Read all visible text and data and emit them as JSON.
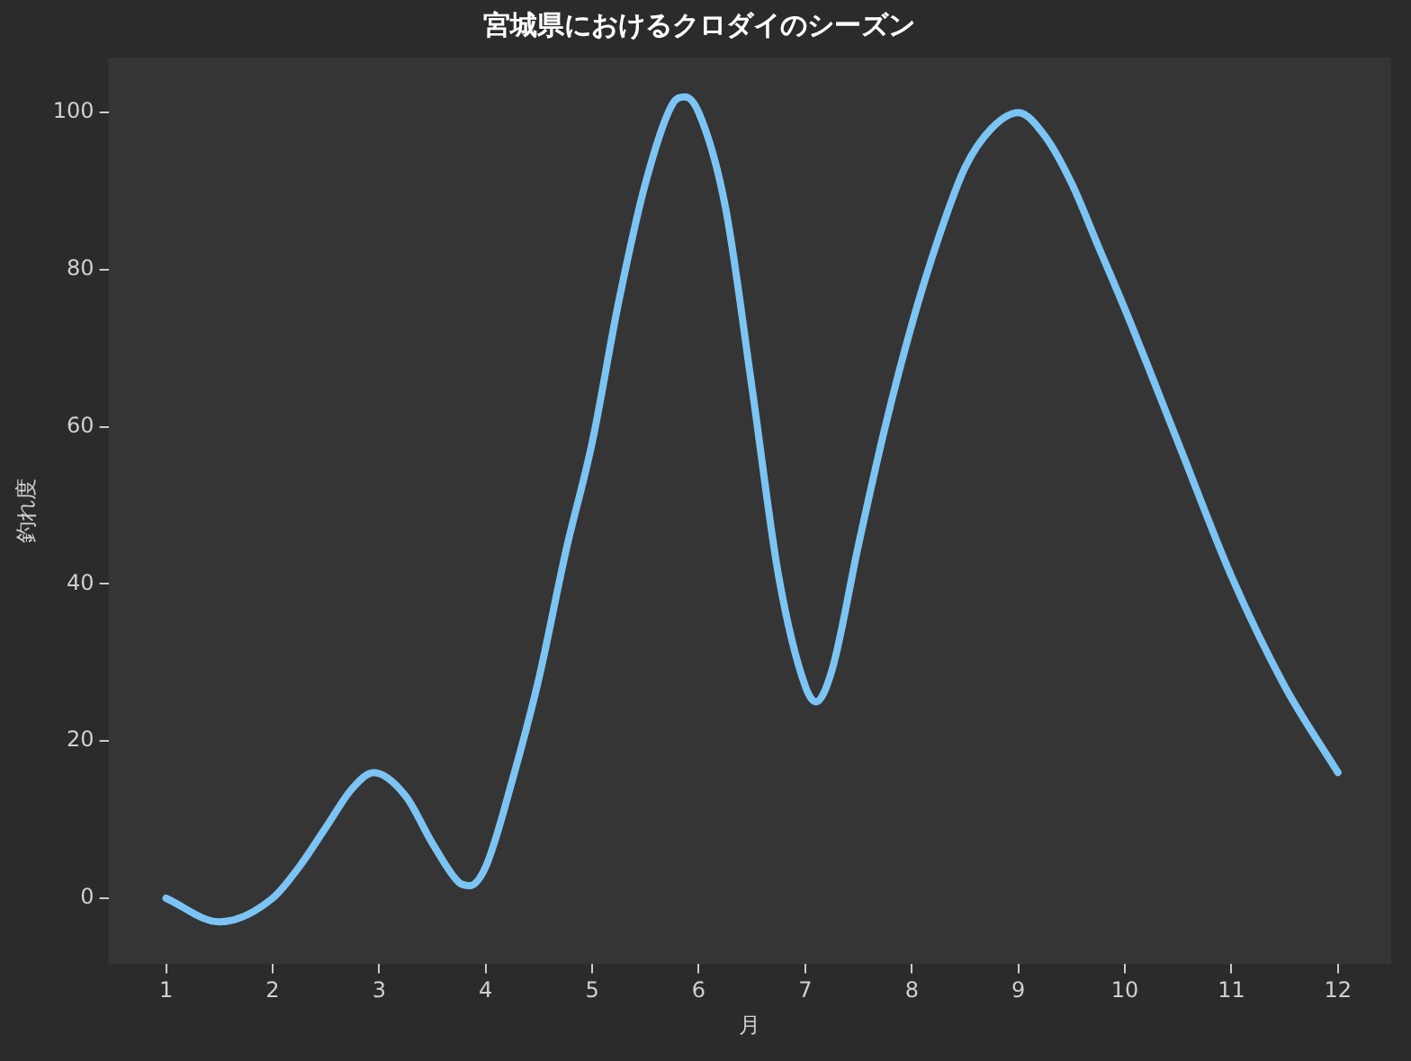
{
  "chart_data": {
    "type": "line",
    "title": "宮城県におけるクロダイのシーズン",
    "xlabel": "月",
    "ylabel": "釣れ度",
    "xlim": [
      0.46,
      12.5
    ],
    "xticks": [
      1,
      2,
      3,
      4,
      5,
      6,
      7,
      8,
      9,
      10,
      11,
      12
    ],
    "ylim": [
      -8.4,
      107
    ],
    "yticks": [
      0,
      20,
      40,
      60,
      80,
      100
    ],
    "series": [
      {
        "color": "#7cc4f4",
        "x": [
          1,
          1.5,
          2,
          2.25,
          2.5,
          2.75,
          2.95,
          3.25,
          3.5,
          3.75,
          3.85,
          4,
          4.25,
          4.5,
          4.75,
          5,
          5.25,
          5.5,
          5.75,
          5.87,
          6,
          6.25,
          6.5,
          6.75,
          7,
          7.1,
          7.25,
          7.5,
          7.75,
          8,
          8.25,
          8.5,
          8.75,
          9,
          9.25,
          9.5,
          9.75,
          10,
          10.5,
          11,
          11.5,
          12
        ],
        "values": [
          0,
          -3,
          0,
          4,
          9,
          14,
          16,
          13,
          7,
          2,
          1.6,
          4,
          15,
          28,
          44,
          58,
          76,
          91,
          101,
          102,
          100,
          88,
          65,
          41,
          27,
          25,
          29,
          45,
          60,
          73,
          84,
          93,
          98,
          100,
          97,
          91,
          83,
          75,
          58,
          41,
          27,
          16
        ]
      }
    ]
  }
}
